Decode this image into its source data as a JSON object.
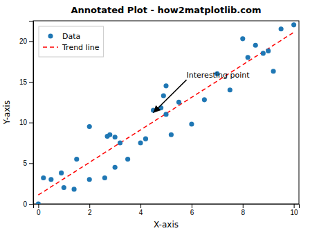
{
  "chart_data": {
    "type": "scatter",
    "title": "Annotated Plot - how2matplotlib.com",
    "x_label": "X-axis",
    "y_label": "Y-axis",
    "series": [
      {
        "name": "Data",
        "type": "scatter",
        "marker": "circle",
        "color": "#1f77b4",
        "x": [
          0.0,
          0.2,
          0.5,
          0.9,
          1.0,
          1.4,
          1.5,
          2.0,
          2.0,
          2.6,
          2.7,
          2.8,
          3.0,
          3.0,
          3.2,
          3.5,
          4.0,
          4.2,
          4.5,
          4.8,
          4.9,
          5.0,
          5.0,
          5.2,
          5.5,
          6.0,
          6.5,
          7.0,
          7.5,
          8.0,
          8.2,
          8.5,
          8.8,
          9.0,
          9.2,
          9.5,
          10.0
        ],
        "values": [
          0.0,
          3.2,
          3.0,
          3.8,
          2.0,
          1.8,
          5.5,
          3.0,
          9.5,
          3.2,
          8.3,
          8.5,
          4.5,
          8.2,
          7.5,
          5.5,
          7.5,
          8.0,
          11.5,
          11.8,
          13.3,
          14.5,
          11.0,
          8.5,
          12.5,
          9.8,
          12.8,
          16.0,
          14.0,
          20.3,
          18.0,
          19.5,
          18.5,
          18.8,
          16.3,
          21.5,
          22.0
        ]
      },
      {
        "name": "Trend line",
        "type": "line",
        "line_style": "dashed",
        "color": "red",
        "x": [
          0,
          10
        ],
        "values": [
          1.0929,
          21.0907
        ]
      }
    ],
    "annotations": [
      {
        "text": "Interesting point",
        "x": 4.5,
        "y": 11.2,
        "text_x": 5.8,
        "text_y": 15.5
      }
    ],
    "xlim": [
      -0.2,
      10.2
    ],
    "ylim": [
      0,
      22.5
    ],
    "xticks": [
      0,
      2,
      4,
      6,
      8,
      10
    ],
    "yticks": [
      0,
      5,
      10,
      15,
      20
    ],
    "legend": "upper left",
    "grid": false
  }
}
